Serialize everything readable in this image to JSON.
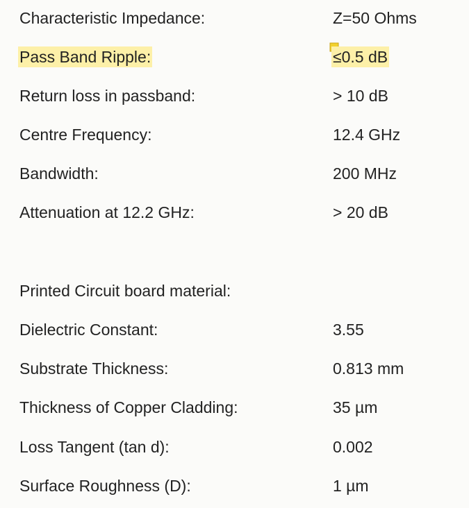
{
  "rows": [
    {
      "label": "Characteristic Impedance:",
      "value": "Z=50 Ohms"
    },
    {
      "label": "Pass Band Ripple:",
      "value": "≤0.5 dB"
    },
    {
      "label": "Return loss in passband:",
      "value": "> 10 dB"
    },
    {
      "label": "Centre Frequency:",
      "value": "12.4 GHz"
    },
    {
      "label": "Bandwidth:",
      "value": "200 MHz"
    },
    {
      "label": "Attenuation at 12.2 GHz:",
      "value": "> 20 dB"
    },
    {
      "label": "Printed Circuit board material:",
      "value": ""
    },
    {
      "label": "Dielectric Constant:",
      "value": "3.55"
    },
    {
      "label": "Substrate Thickness:",
      "value": "0.813 mm"
    },
    {
      "label": "Thickness of Copper Cladding:",
      "value": "35 µm"
    },
    {
      "label": "Loss Tangent (tan d):",
      "value": "0.002"
    },
    {
      "label": "Surface Roughness (D):",
      "value": "1 µm"
    }
  ],
  "colors": {
    "highlight": "#fdf0a8",
    "note": "#f2d12e"
  },
  "icons": {
    "annotation": "sticky-note-icon"
  }
}
